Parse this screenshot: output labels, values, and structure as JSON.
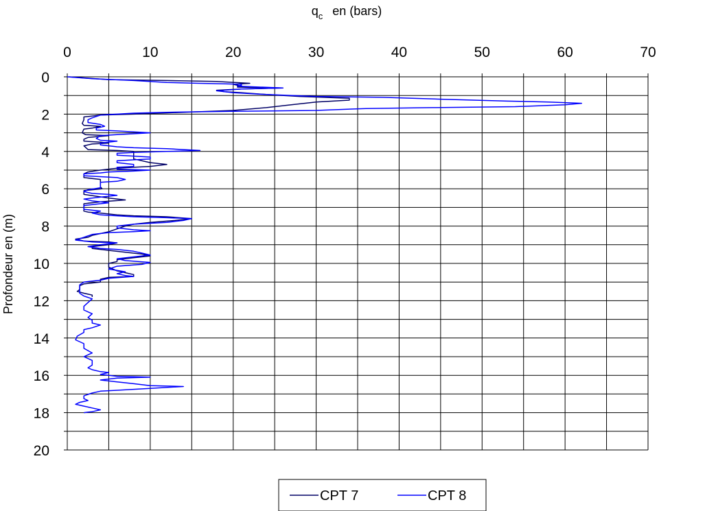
{
  "chart_data": {
    "type": "line",
    "x_title_main": "q",
    "x_title_sub": "c",
    "x_title_rest": "en (bars)",
    "ylabel": "Profondeur  en (m)",
    "x_axis_position": "top",
    "y_axis_inverted": true,
    "xlim": [
      0,
      70
    ],
    "ylim": [
      0,
      20
    ],
    "x_ticks": [
      "0",
      "10",
      "20",
      "30",
      "40",
      "50",
      "60",
      "70"
    ],
    "y_ticks": [
      "0",
      "2",
      "4",
      "6",
      "8",
      "10",
      "12",
      "14",
      "16",
      "18",
      "20"
    ],
    "x_minor_step": 5,
    "y_minor_step": 1,
    "grid": true,
    "legend_position": "bottom-center",
    "series": [
      {
        "name": "CPT 7",
        "color": "#000066",
        "points": [
          [
            0.2,
            0.0
          ],
          [
            5,
            0.15
          ],
          [
            12,
            0.2
          ],
          [
            18,
            0.25
          ],
          [
            22,
            0.35
          ],
          [
            20,
            0.4
          ],
          [
            21,
            0.5
          ],
          [
            20.5,
            0.55
          ],
          [
            26,
            0.6
          ],
          [
            21,
            0.65
          ],
          [
            18,
            0.72
          ],
          [
            19,
            0.8
          ],
          [
            21,
            0.85
          ],
          [
            24,
            0.95
          ],
          [
            28,
            1.05
          ],
          [
            34,
            1.15
          ],
          [
            34,
            1.25
          ],
          [
            30,
            1.35
          ],
          [
            27,
            1.5
          ],
          [
            24,
            1.65
          ],
          [
            20,
            1.8
          ],
          [
            14,
            1.9
          ],
          [
            8,
            2.0
          ],
          [
            4,
            2.05
          ],
          [
            2,
            2.15
          ],
          [
            2,
            2.3
          ],
          [
            1.8,
            2.5
          ],
          [
            2,
            2.6
          ],
          [
            4,
            2.65
          ],
          [
            3,
            2.75
          ],
          [
            2,
            2.8
          ],
          [
            1.8,
            3.0
          ],
          [
            2.2,
            3.1
          ],
          [
            5,
            3.15
          ],
          [
            2.5,
            3.25
          ],
          [
            2,
            3.35
          ],
          [
            2,
            3.45
          ],
          [
            4,
            3.5
          ],
          [
            5,
            3.55
          ],
          [
            3,
            3.6
          ],
          [
            2,
            3.7
          ],
          [
            2.5,
            3.9
          ],
          [
            6,
            3.95
          ],
          [
            8,
            4.0
          ],
          [
            8,
            4.2
          ],
          [
            8,
            4.4
          ],
          [
            10,
            4.6
          ],
          [
            12,
            4.7
          ],
          [
            10,
            4.8
          ],
          [
            8,
            4.85
          ],
          [
            6,
            4.9
          ],
          [
            4,
            5.0
          ],
          [
            2.5,
            5.1
          ],
          [
            2,
            5.2
          ],
          [
            2,
            5.4
          ],
          [
            4,
            5.5
          ],
          [
            4,
            5.7
          ],
          [
            4,
            5.9
          ],
          [
            4.2,
            6.0
          ],
          [
            2,
            6.1
          ],
          [
            2,
            6.3
          ],
          [
            5,
            6.5
          ],
          [
            7,
            6.6
          ],
          [
            4,
            6.7
          ],
          [
            2,
            6.8
          ],
          [
            2,
            7.0
          ],
          [
            2,
            7.2
          ],
          [
            2.5,
            7.25
          ],
          [
            4,
            7.3
          ],
          [
            6,
            7.4
          ],
          [
            8,
            7.45
          ],
          [
            12,
            7.5
          ],
          [
            15,
            7.6
          ],
          [
            13,
            7.7
          ],
          [
            10,
            7.8
          ],
          [
            8,
            7.9
          ],
          [
            7,
            8.0
          ],
          [
            6,
            8.15
          ],
          [
            5,
            8.3
          ],
          [
            4,
            8.4
          ],
          [
            3,
            8.5
          ],
          [
            2.5,
            8.6
          ],
          [
            1,
            8.7
          ],
          [
            2,
            8.8
          ],
          [
            5,
            8.85
          ],
          [
            6,
            8.9
          ],
          [
            5,
            9.0
          ],
          [
            3,
            9.1
          ],
          [
            3,
            9.2
          ],
          [
            5,
            9.3
          ],
          [
            7,
            9.4
          ],
          [
            9,
            9.5
          ],
          [
            10,
            9.6
          ],
          [
            8,
            9.7
          ],
          [
            6,
            9.8
          ],
          [
            6,
            9.9
          ],
          [
            5,
            10.0
          ],
          [
            5,
            10.2
          ],
          [
            6,
            10.4
          ],
          [
            7,
            10.5
          ],
          [
            8,
            10.6
          ],
          [
            8,
            10.7
          ],
          [
            5,
            10.75
          ],
          [
            4,
            10.85
          ],
          [
            4,
            11.0
          ],
          [
            2,
            11.1
          ],
          [
            1.5,
            11.2
          ],
          [
            1.5,
            11.4
          ],
          [
            1.2,
            11.5
          ],
          [
            2,
            11.6
          ],
          [
            3,
            11.7
          ],
          [
            3,
            11.8
          ]
        ]
      },
      {
        "name": "CPT  8",
        "color": "#0000FF",
        "points": [
          [
            0,
            0
          ],
          [
            3,
            0.1
          ],
          [
            8,
            0.2
          ],
          [
            12,
            0.3
          ],
          [
            16,
            0.35
          ],
          [
            19,
            0.38
          ],
          [
            21,
            0.4
          ],
          [
            21,
            0.45
          ],
          [
            20.5,
            0.5
          ],
          [
            26,
            0.6
          ],
          [
            21,
            0.65
          ],
          [
            18,
            0.75
          ],
          [
            20,
            0.85
          ],
          [
            24,
            0.95
          ],
          [
            30,
            1.05
          ],
          [
            38,
            1.1
          ],
          [
            45,
            1.2
          ],
          [
            53,
            1.3
          ],
          [
            58,
            1.35
          ],
          [
            61,
            1.4
          ],
          [
            62,
            1.42
          ],
          [
            60,
            1.5
          ],
          [
            54,
            1.6
          ],
          [
            44,
            1.65
          ],
          [
            36,
            1.7
          ],
          [
            30,
            1.8
          ],
          [
            20,
            1.85
          ],
          [
            12,
            1.9
          ],
          [
            8,
            1.95
          ],
          [
            4,
            2.05
          ],
          [
            3,
            2.2
          ],
          [
            2.5,
            2.3
          ],
          [
            2.5,
            2.45
          ],
          [
            4,
            2.55
          ],
          [
            4.5,
            2.65
          ],
          [
            3.5,
            2.75
          ],
          [
            3.5,
            2.85
          ],
          [
            6,
            2.9
          ],
          [
            8,
            2.95
          ],
          [
            10,
            3.0
          ],
          [
            8,
            3.05
          ],
          [
            6,
            3.1
          ],
          [
            4,
            3.15
          ],
          [
            3.5,
            3.3
          ],
          [
            4,
            3.4
          ],
          [
            6,
            3.45
          ],
          [
            4,
            3.55
          ],
          [
            4,
            3.65
          ],
          [
            6,
            3.75
          ],
          [
            8,
            3.8
          ],
          [
            12,
            3.85
          ],
          [
            14,
            3.9
          ],
          [
            16,
            3.95
          ],
          [
            12,
            4.0
          ],
          [
            8,
            4.05
          ],
          [
            6,
            4.1
          ],
          [
            6,
            4.2
          ],
          [
            8,
            4.25
          ],
          [
            10,
            4.3
          ],
          [
            10,
            4.4
          ],
          [
            8,
            4.45
          ],
          [
            6,
            4.5
          ],
          [
            6,
            4.6
          ],
          [
            8,
            4.7
          ],
          [
            8,
            4.8
          ],
          [
            6,
            4.85
          ],
          [
            6,
            4.95
          ],
          [
            10,
            5.0
          ],
          [
            8,
            5.05
          ],
          [
            5,
            5.1
          ],
          [
            4,
            5.15
          ],
          [
            2,
            5.2
          ],
          [
            2,
            5.3
          ],
          [
            6,
            5.4
          ],
          [
            7,
            5.5
          ],
          [
            6,
            5.6
          ],
          [
            4,
            5.65
          ],
          [
            4,
            5.8
          ],
          [
            4,
            5.95
          ],
          [
            2.5,
            6.05
          ],
          [
            2,
            6.15
          ],
          [
            3,
            6.25
          ],
          [
            5,
            6.3
          ],
          [
            6,
            6.35
          ],
          [
            4,
            6.45
          ],
          [
            2,
            6.55
          ],
          [
            3,
            6.65
          ],
          [
            5,
            6.75
          ],
          [
            4,
            6.8
          ],
          [
            2,
            6.9
          ],
          [
            2,
            7.0
          ],
          [
            2,
            7.1
          ],
          [
            4,
            7.2
          ],
          [
            3,
            7.3
          ],
          [
            4,
            7.4
          ],
          [
            8,
            7.5
          ],
          [
            12,
            7.55
          ],
          [
            15,
            7.6
          ],
          [
            14,
            7.7
          ],
          [
            12,
            7.8
          ],
          [
            10,
            7.85
          ],
          [
            8,
            7.9
          ],
          [
            6,
            8.0
          ],
          [
            6,
            8.1
          ],
          [
            8,
            8.2
          ],
          [
            10,
            8.25
          ],
          [
            8,
            8.3
          ],
          [
            5,
            8.35
          ],
          [
            3,
            8.45
          ],
          [
            2,
            8.6
          ],
          [
            1,
            8.75
          ],
          [
            3,
            8.85
          ],
          [
            6,
            8.9
          ],
          [
            4,
            9.0
          ],
          [
            2.5,
            9.1
          ],
          [
            4,
            9.2
          ],
          [
            6,
            9.25
          ],
          [
            8,
            9.35
          ],
          [
            9,
            9.45
          ],
          [
            10,
            9.55
          ],
          [
            8,
            9.65
          ],
          [
            6,
            9.75
          ],
          [
            7,
            9.85
          ],
          [
            10,
            9.95
          ],
          [
            9,
            10.05
          ],
          [
            6,
            10.15
          ],
          [
            5,
            10.3
          ],
          [
            7,
            10.45
          ],
          [
            6,
            10.55
          ],
          [
            7,
            10.65
          ],
          [
            8,
            10.7
          ],
          [
            5,
            10.8
          ],
          [
            4,
            10.9
          ],
          [
            2,
            11.0
          ],
          [
            1.5,
            11.15
          ],
          [
            1.5,
            11.35
          ],
          [
            1.5,
            11.6
          ],
          [
            2,
            11.75
          ],
          [
            3,
            11.9
          ],
          [
            2.5,
            12.1
          ],
          [
            2,
            12.3
          ],
          [
            2,
            12.5
          ],
          [
            3,
            12.7
          ],
          [
            2.5,
            12.9
          ],
          [
            3,
            13.05
          ],
          [
            3,
            13.2
          ],
          [
            4,
            13.3
          ],
          [
            3,
            13.45
          ],
          [
            2,
            13.55
          ],
          [
            2,
            13.7
          ],
          [
            1.2,
            13.9
          ],
          [
            1,
            14.1
          ],
          [
            2,
            14.3
          ],
          [
            2,
            14.55
          ],
          [
            3,
            14.8
          ],
          [
            2,
            15.0
          ],
          [
            3,
            15.2
          ],
          [
            3,
            15.45
          ],
          [
            2.5,
            15.6
          ],
          [
            3,
            15.7
          ],
          [
            4,
            15.8
          ],
          [
            5,
            15.85
          ],
          [
            4,
            15.95
          ],
          [
            6,
            16.05
          ],
          [
            10,
            16.1
          ],
          [
            6,
            16.15
          ],
          [
            4,
            16.25
          ],
          [
            6,
            16.35
          ],
          [
            8,
            16.45
          ],
          [
            10,
            16.55
          ],
          [
            14,
            16.6
          ],
          [
            10,
            16.7
          ],
          [
            6,
            16.8
          ],
          [
            4,
            16.85
          ],
          [
            3,
            16.95
          ],
          [
            2,
            17.1
          ],
          [
            2,
            17.25
          ],
          [
            2.5,
            17.35
          ],
          [
            1.5,
            17.45
          ],
          [
            1,
            17.55
          ],
          [
            2,
            17.65
          ],
          [
            3,
            17.75
          ],
          [
            4,
            17.85
          ],
          [
            3,
            17.95
          ],
          [
            2,
            18.0
          ]
        ]
      }
    ]
  }
}
